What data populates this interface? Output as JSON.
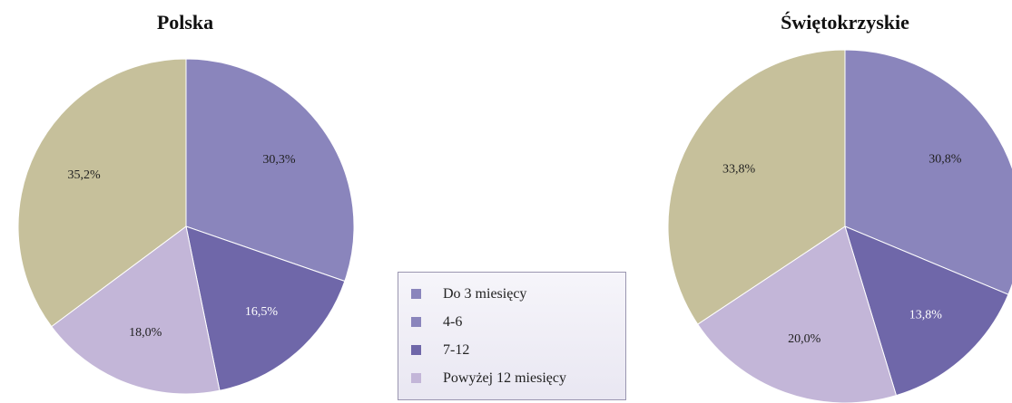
{
  "chart_data": [
    {
      "type": "pie",
      "title": "Polska",
      "categories": [
        "Do 3 miesięcy",
        "4-6",
        "7-12",
        "Powyżej 12 miesięcy"
      ],
      "series": [
        {
          "values": [
            30.3,
            16.5,
            18.0,
            35.2
          ]
        }
      ],
      "value_labels": [
        "30,3%",
        "16,5%",
        "18,0%",
        "35,2%"
      ]
    },
    {
      "type": "pie",
      "title": "Świętokrzyskie",
      "categories": [
        "Do 3 miesięcy",
        "4-6",
        "7-12",
        "Powyżej 12 miesięcy"
      ],
      "series": [
        {
          "values": [
            30.8,
            13.8,
            20.0,
            33.8
          ]
        }
      ],
      "value_labels": [
        "30,8%",
        "13,8%",
        "20,0%",
        "33,8%"
      ]
    }
  ],
  "legend": {
    "placement": "bottom-center",
    "items": [
      {
        "label": "Do 3 miesięcy",
        "color": "#8a85bc"
      },
      {
        "label": "4-6",
        "color": "#8a85bc"
      },
      {
        "label": "7-12",
        "color": "#6f67a9"
      },
      {
        "label": "Powyżej 12 miesięcy",
        "color": "#c3b6d8"
      }
    ]
  },
  "slice_colors": [
    "#8a85bc",
    "#6f67a9",
    "#c3b6d8",
    "#c6c09b"
  ],
  "slice_label_colors": [
    "#1f1f1f",
    "#ffffff",
    "#1f1f1f",
    "#1f1f1f"
  ]
}
